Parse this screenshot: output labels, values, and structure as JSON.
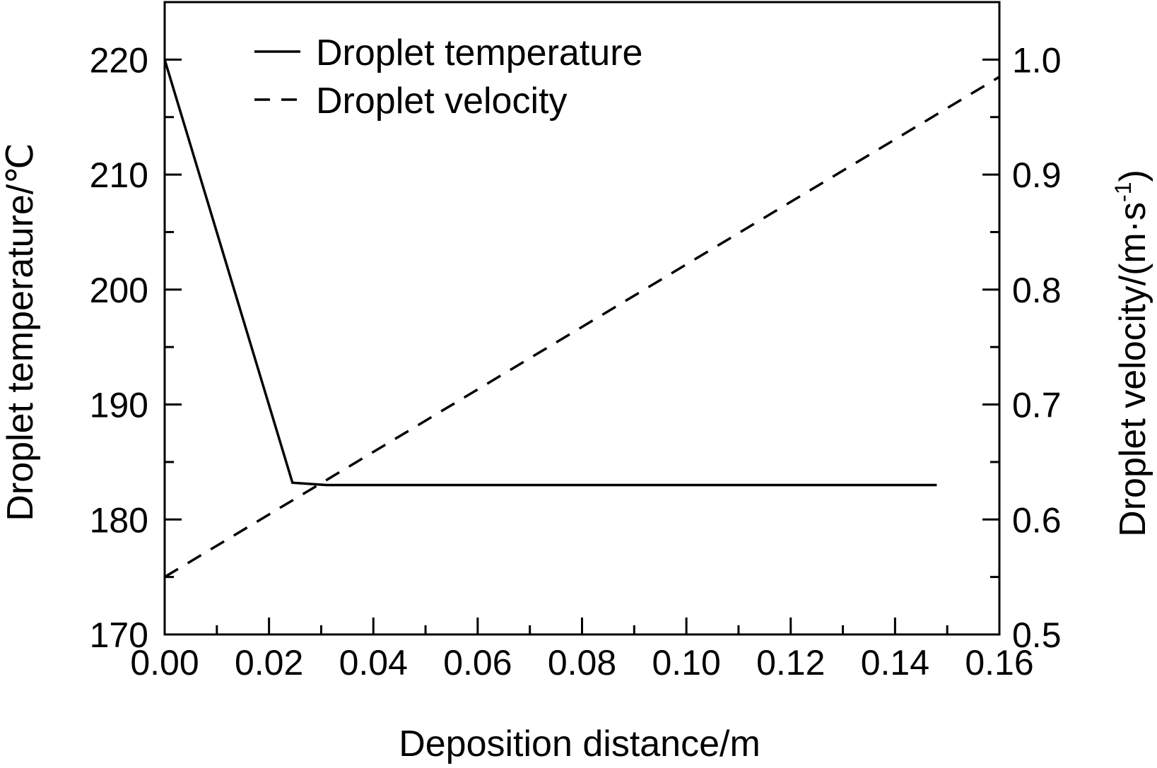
{
  "chart_data": {
    "type": "line",
    "xlabel": "Deposition distance/m",
    "ylabel_left": "Droplet temperature/℃",
    "ylabel_right": "Droplet velocity/(m·s",
    "ylabel_right_sup": "-1",
    "ylabel_right_close": ")",
    "xlim": [
      0.0,
      0.16
    ],
    "ylim_left": [
      170,
      225
    ],
    "ylim_right": [
      0.5,
      1.05
    ],
    "x_ticks": [
      "0.00",
      "0.02",
      "0.04",
      "0.06",
      "0.08",
      "0.10",
      "0.12",
      "0.14",
      "0.16"
    ],
    "y_left_ticks": [
      "170",
      "180",
      "190",
      "200",
      "210",
      "220"
    ],
    "y_right_ticks": [
      "0.5",
      "0.6",
      "0.7",
      "0.8",
      "0.9",
      "1.0"
    ],
    "legend_position": "top-left",
    "series": [
      {
        "name": "Droplet temperature",
        "axis": "left",
        "style": "solid",
        "x": [
          0.0,
          0.0245,
          0.031,
          0.148
        ],
        "y": [
          220,
          183.2,
          183.0,
          183.0
        ]
      },
      {
        "name": "Droplet velocity",
        "axis": "right",
        "style": "dashed",
        "x": [
          0.0,
          0.16
        ],
        "y": [
          0.55,
          0.985
        ]
      }
    ]
  }
}
